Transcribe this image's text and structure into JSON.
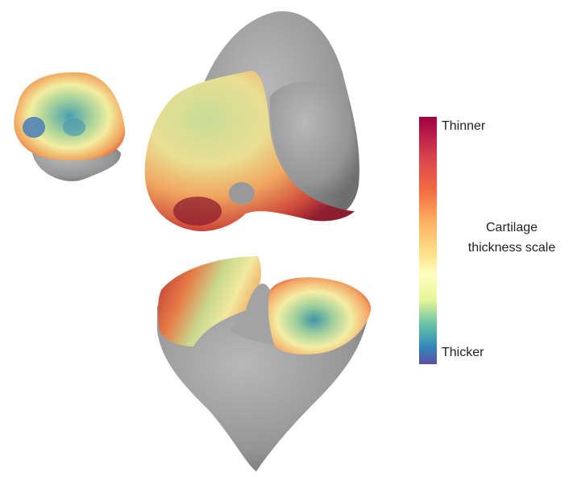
{
  "scale": {
    "top_label": "Thinner",
    "bottom_label": "Thicker",
    "title_lines": [
      "Cartilage",
      "thickness scale"
    ]
  }
}
